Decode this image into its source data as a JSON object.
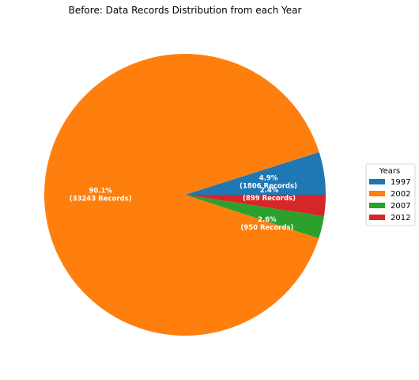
{
  "chart_data": {
    "type": "pie",
    "title": "Before: Data Records Distribution from each Year",
    "legend": {
      "title": "Years",
      "placement": "right"
    },
    "slices": [
      {
        "label": "1997",
        "value": 1806,
        "percent_label": "4.9%",
        "records_label": "(1806 Records)",
        "color": "#1f77b4"
      },
      {
        "label": "2002",
        "value": 33243,
        "percent_label": "90.1%",
        "records_label": "(33243 Records)",
        "color": "#ff7f0e"
      },
      {
        "label": "2007",
        "value": 950,
        "percent_label": "2.6%",
        "records_label": "(950 Records)",
        "color": "#2ca02c"
      },
      {
        "label": "2012",
        "value": 899,
        "percent_label": "2.4%",
        "records_label": "(899 Records)",
        "color": "#d62728"
      }
    ]
  }
}
